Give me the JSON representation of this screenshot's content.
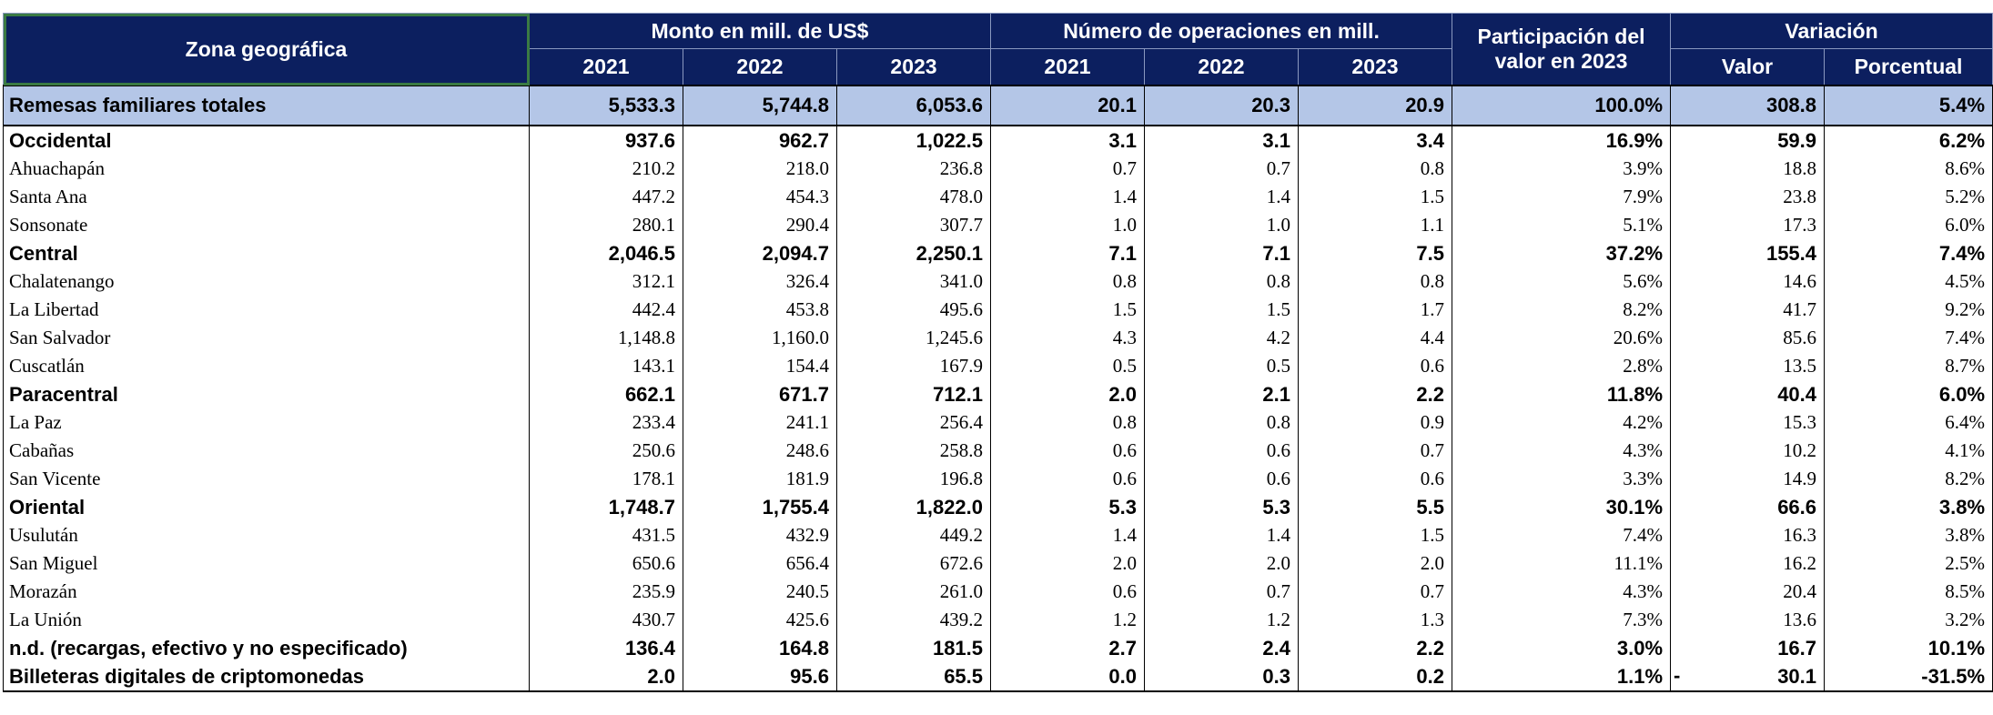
{
  "header": {
    "zona": "Zona geográfica",
    "monto": "Monto en mill. de US$",
    "operaciones": "Número de operaciones en mill.",
    "participacion_line1": "Participación del",
    "participacion_line2": "valor en 2023",
    "variacion": "Variación",
    "years": [
      "2021",
      "2022",
      "2023"
    ],
    "valor": "Valor",
    "porcentual": "Porcentual"
  },
  "rows": [
    {
      "label": "Remesas familiares totales",
      "vals": [
        "5,533.3",
        "5,744.8",
        "6,053.6",
        "20.1",
        "20.3",
        "20.9",
        "100.0%",
        "308.8",
        "5.4%"
      ]
    },
    {
      "label": "Occidental",
      "vals": [
        "937.6",
        "962.7",
        "1,022.5",
        "3.1",
        "3.1",
        "3.4",
        "16.9%",
        "59.9",
        "6.2%"
      ]
    },
    {
      "label": "Ahuachapán",
      "vals": [
        "210.2",
        "218.0",
        "236.8",
        "0.7",
        "0.7",
        "0.8",
        "3.9%",
        "18.8",
        "8.6%"
      ]
    },
    {
      "label": "Santa Ana",
      "vals": [
        "447.2",
        "454.3",
        "478.0",
        "1.4",
        "1.4",
        "1.5",
        "7.9%",
        "23.8",
        "5.2%"
      ]
    },
    {
      "label": "Sonsonate",
      "vals": [
        "280.1",
        "290.4",
        "307.7",
        "1.0",
        "1.0",
        "1.1",
        "5.1%",
        "17.3",
        "6.0%"
      ]
    },
    {
      "label": "Central",
      "vals": [
        "2,046.5",
        "2,094.7",
        "2,250.1",
        "7.1",
        "7.1",
        "7.5",
        "37.2%",
        "155.4",
        "7.4%"
      ]
    },
    {
      "label": "Chalatenango",
      "vals": [
        "312.1",
        "326.4",
        "341.0",
        "0.8",
        "0.8",
        "0.8",
        "5.6%",
        "14.6",
        "4.5%"
      ]
    },
    {
      "label": "La Libertad",
      "vals": [
        "442.4",
        "453.8",
        "495.6",
        "1.5",
        "1.5",
        "1.7",
        "8.2%",
        "41.7",
        "9.2%"
      ]
    },
    {
      "label": "San Salvador",
      "vals": [
        "1,148.8",
        "1,160.0",
        "1,245.6",
        "4.3",
        "4.2",
        "4.4",
        "20.6%",
        "85.6",
        "7.4%"
      ]
    },
    {
      "label": "Cuscatlán",
      "vals": [
        "143.1",
        "154.4",
        "167.9",
        "0.5",
        "0.5",
        "0.6",
        "2.8%",
        "13.5",
        "8.7%"
      ]
    },
    {
      "label": "Paracentral",
      "vals": [
        "662.1",
        "671.7",
        "712.1",
        "2.0",
        "2.1",
        "2.2",
        "11.8%",
        "40.4",
        "6.0%"
      ]
    },
    {
      "label": "La Paz",
      "vals": [
        "233.4",
        "241.1",
        "256.4",
        "0.8",
        "0.8",
        "0.9",
        "4.2%",
        "15.3",
        "6.4%"
      ]
    },
    {
      "label": "Cabañas",
      "vals": [
        "250.6",
        "248.6",
        "258.8",
        "0.6",
        "0.6",
        "0.7",
        "4.3%",
        "10.2",
        "4.1%"
      ]
    },
    {
      "label": "San Vicente",
      "vals": [
        "178.1",
        "181.9",
        "196.8",
        "0.6",
        "0.6",
        "0.6",
        "3.3%",
        "14.9",
        "8.2%"
      ]
    },
    {
      "label": "Oriental",
      "vals": [
        "1,748.7",
        "1,755.4",
        "1,822.0",
        "5.3",
        "5.3",
        "5.5",
        "30.1%",
        "66.6",
        "3.8%"
      ]
    },
    {
      "label": "Usulután",
      "vals": [
        "431.5",
        "432.9",
        "449.2",
        "1.4",
        "1.4",
        "1.5",
        "7.4%",
        "16.3",
        "3.8%"
      ]
    },
    {
      "label": "San Miguel",
      "vals": [
        "650.6",
        "656.4",
        "672.6",
        "2.0",
        "2.0",
        "2.0",
        "11.1%",
        "16.2",
        "2.5%"
      ]
    },
    {
      "label": "Morazán",
      "vals": [
        "235.9",
        "240.5",
        "261.0",
        "0.6",
        "0.7",
        "0.7",
        "4.3%",
        "20.4",
        "8.5%"
      ]
    },
    {
      "label": "La Unión",
      "vals": [
        "430.7",
        "425.6",
        "439.2",
        "1.2",
        "1.2",
        "1.3",
        "7.3%",
        "13.6",
        "3.2%"
      ]
    },
    {
      "label": "n.d. (recargas, efectivo y no especificado)",
      "vals": [
        "136.4",
        "164.8",
        "181.5",
        "2.7",
        "2.4",
        "2.2",
        "3.0%",
        "16.7",
        "10.1%"
      ]
    },
    {
      "label": "Billeteras digitales de criptomonedas",
      "vals": [
        "2.0",
        "95.6",
        "65.5",
        "0.0",
        "0.3",
        "0.2",
        "1.1%",
        "30.1",
        "-31.5%"
      ],
      "valor_prefix": "-"
    }
  ]
}
